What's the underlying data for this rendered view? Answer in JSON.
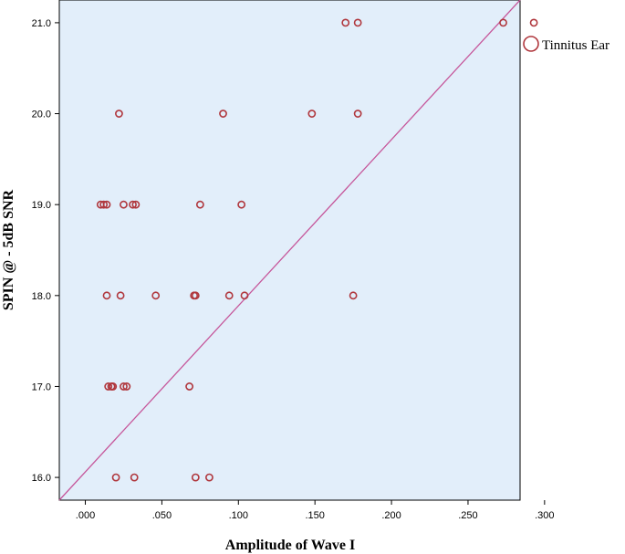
{
  "chart_data": {
    "type": "scatter",
    "xlabel": "Amplitude of Wave I",
    "ylabel": "SPIN @ - 5dB SNR",
    "xlim": [
      -0.017,
      0.284
    ],
    "ylim": [
      15.75,
      21.25
    ],
    "x_ticks": [
      0.0,
      0.05,
      0.1,
      0.15,
      0.2,
      0.25,
      0.3
    ],
    "x_tick_labels": [
      ".000",
      ".050",
      ".100",
      ".150",
      ".200",
      ".250",
      ".300"
    ],
    "y_ticks": [
      16,
      17,
      18,
      19,
      20,
      21
    ],
    "y_tick_labels": [
      "16.0",
      "17.0",
      "18.0",
      "19.0",
      "20.0",
      "21.0"
    ],
    "legend": {
      "position": "right-top",
      "entries": [
        "Tinnitus Ear"
      ]
    },
    "colors": {
      "plot_bg": "#e2eefa",
      "marker": "#b0373d",
      "fit_line": "#c6569a"
    },
    "fit_line": {
      "x": [
        -0.017,
        0.284
      ],
      "y": [
        15.75,
        21.25
      ]
    },
    "series": [
      {
        "name": "Tinnitus Ear",
        "points": [
          {
            "x": 0.17,
            "y": 21
          },
          {
            "x": 0.178,
            "y": 21
          },
          {
            "x": 0.273,
            "y": 21
          },
          {
            "x": 0.293,
            "y": 21
          },
          {
            "x": 0.022,
            "y": 20
          },
          {
            "x": 0.09,
            "y": 20
          },
          {
            "x": 0.148,
            "y": 20
          },
          {
            "x": 0.178,
            "y": 20
          },
          {
            "x": 0.01,
            "y": 19
          },
          {
            "x": 0.012,
            "y": 19
          },
          {
            "x": 0.014,
            "y": 19
          },
          {
            "x": 0.025,
            "y": 19
          },
          {
            "x": 0.031,
            "y": 19
          },
          {
            "x": 0.033,
            "y": 19
          },
          {
            "x": 0.075,
            "y": 19
          },
          {
            "x": 0.102,
            "y": 19
          },
          {
            "x": 0.014,
            "y": 18
          },
          {
            "x": 0.023,
            "y": 18
          },
          {
            "x": 0.046,
            "y": 18
          },
          {
            "x": 0.071,
            "y": 18
          },
          {
            "x": 0.072,
            "y": 18
          },
          {
            "x": 0.094,
            "y": 18
          },
          {
            "x": 0.104,
            "y": 18
          },
          {
            "x": 0.175,
            "y": 18
          },
          {
            "x": 0.015,
            "y": 17
          },
          {
            "x": 0.017,
            "y": 17
          },
          {
            "x": 0.018,
            "y": 17
          },
          {
            "x": 0.025,
            "y": 17
          },
          {
            "x": 0.027,
            "y": 17
          },
          {
            "x": 0.068,
            "y": 17
          },
          {
            "x": 0.02,
            "y": 16
          },
          {
            "x": 0.032,
            "y": 16
          },
          {
            "x": 0.072,
            "y": 16
          },
          {
            "x": 0.081,
            "y": 16
          }
        ]
      }
    ]
  }
}
